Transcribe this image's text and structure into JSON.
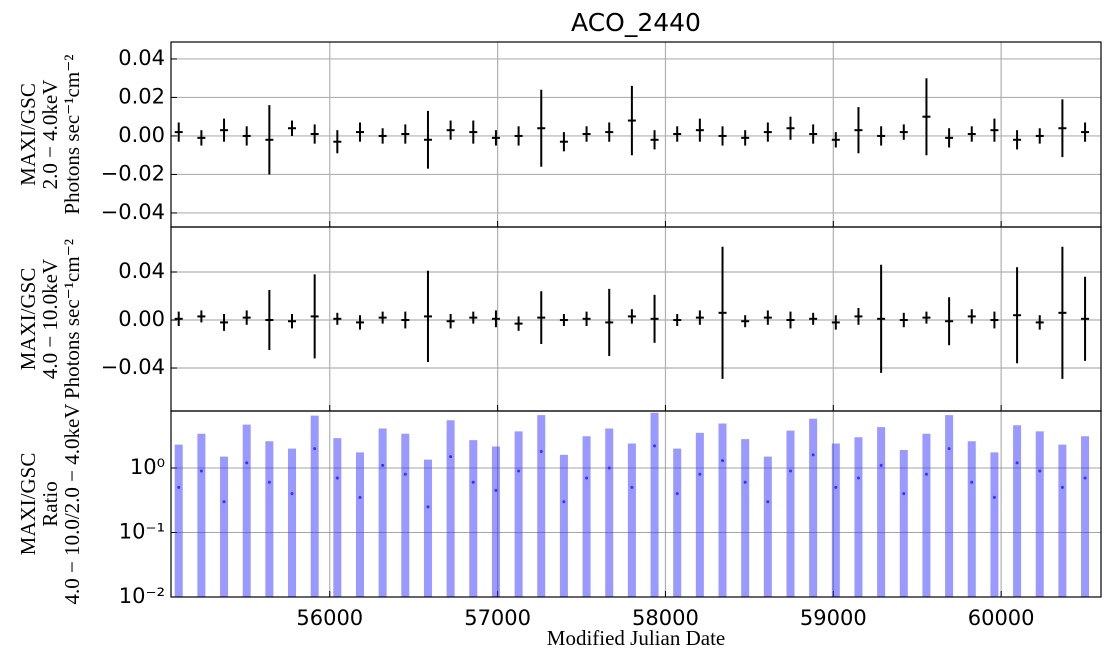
{
  "chart_data": [
    {
      "type": "errorbar",
      "title": "ACO_2440",
      "ylabel": [
        "MAXI/GSC",
        "2.0 − 4.0keV",
        "Photons sec⁻¹cm⁻²"
      ],
      "color": "#000000",
      "grid": true,
      "xlim": [
        55054,
        60595
      ],
      "xticks": [
        56000,
        57000,
        58000,
        59000,
        60000
      ],
      "ylim": [
        -0.0473,
        0.0488
      ],
      "yticks": [
        {
          "value": 0.04,
          "label": "0.04"
        },
        {
          "value": 0.02,
          "label": "0.02"
        },
        {
          "value": 0,
          "label": "0.00"
        },
        {
          "value": -0.02,
          "label": "−0.02"
        },
        {
          "value": -0.04,
          "label": "−0.04"
        }
      ],
      "x": [
        55100,
        55235,
        55370,
        55505,
        55640,
        55775,
        55910,
        56045,
        56180,
        56315,
        56450,
        56585,
        56720,
        56855,
        56990,
        57125,
        57260,
        57395,
        57530,
        57665,
        57800,
        57935,
        58070,
        58205,
        58340,
        58475,
        58610,
        58745,
        58880,
        59015,
        59150,
        59285,
        59420,
        59555,
        59690,
        59825,
        59960,
        60095,
        60230,
        60365,
        60500
      ],
      "values": [
        0.002,
        -0.001,
        0.003,
        0.0,
        -0.002,
        0.004,
        0.001,
        -0.003,
        0.002,
        0.0,
        0.001,
        -0.002,
        0.003,
        0.002,
        -0.001,
        0.0,
        0.004,
        -0.003,
        0.001,
        0.002,
        0.008,
        -0.002,
        0.001,
        0.003,
        0.0,
        -0.001,
        0.002,
        0.004,
        0.001,
        -0.002,
        0.003,
        0.0,
        0.002,
        0.01,
        -0.001,
        0.001,
        0.003,
        -0.002,
        0.0,
        0.004,
        0.002
      ],
      "errors": [
        0.005,
        0.004,
        0.006,
        0.005,
        0.018,
        0.004,
        0.005,
        0.006,
        0.005,
        0.004,
        0.005,
        0.015,
        0.005,
        0.006,
        0.004,
        0.005,
        0.02,
        0.005,
        0.004,
        0.005,
        0.018,
        0.005,
        0.004,
        0.006,
        0.005,
        0.004,
        0.005,
        0.006,
        0.005,
        0.004,
        0.012,
        0.005,
        0.004,
        0.02,
        0.005,
        0.004,
        0.006,
        0.005,
        0.004,
        0.015,
        0.005
      ]
    },
    {
      "type": "errorbar",
      "ylabel": [
        "MAXI/GSC",
        "4.0 − 10.0keV",
        "Photons sec⁻¹cm⁻²"
      ],
      "color": "#000000",
      "grid": true,
      "xlim": [
        55054,
        60595
      ],
      "xticks": [
        56000,
        57000,
        58000,
        59000,
        60000
      ],
      "ylim": [
        -0.0758,
        0.0775
      ],
      "yticks": [
        {
          "value": 0.04,
          "label": "0.04"
        },
        {
          "value": 0,
          "label": "0.00"
        },
        {
          "value": -0.04,
          "label": "−0.04"
        }
      ],
      "x": [
        55100,
        55235,
        55370,
        55505,
        55640,
        55775,
        55910,
        56045,
        56180,
        56315,
        56450,
        56585,
        56720,
        56855,
        56990,
        57125,
        57260,
        57395,
        57530,
        57665,
        57800,
        57935,
        58070,
        58205,
        58340,
        58475,
        58610,
        58745,
        58880,
        59015,
        59150,
        59285,
        59420,
        59555,
        59690,
        59825,
        59960,
        60095,
        60230,
        60365,
        60500
      ],
      "values": [
        0.001,
        0.003,
        -0.002,
        0.002,
        0.0,
        -0.001,
        0.003,
        0.001,
        -0.002,
        0.002,
        0.0,
        0.003,
        -0.001,
        0.002,
        0.001,
        -0.003,
        0.002,
        0.0,
        0.001,
        -0.002,
        0.003,
        0.001,
        0.0,
        0.002,
        0.006,
        -0.001,
        0.002,
        0.0,
        0.001,
        -0.002,
        0.003,
        0.001,
        0.0,
        0.002,
        -0.001,
        0.003,
        0.0,
        0.004,
        -0.002,
        0.006,
        0.001
      ],
      "errors": [
        0.006,
        0.005,
        0.007,
        0.006,
        0.025,
        0.006,
        0.035,
        0.005,
        0.006,
        0.005,
        0.007,
        0.038,
        0.006,
        0.005,
        0.007,
        0.006,
        0.022,
        0.005,
        0.006,
        0.028,
        0.006,
        0.02,
        0.005,
        0.006,
        0.055,
        0.005,
        0.006,
        0.007,
        0.005,
        0.006,
        0.007,
        0.045,
        0.006,
        0.005,
        0.02,
        0.006,
        0.007,
        0.04,
        0.006,
        0.055,
        0.035
      ]
    },
    {
      "type": "ratio",
      "ylabel": [
        "MAXI/GSC",
        "Ratio",
        "4.0 − 10.0/2.0 − 4.0keV"
      ],
      "xlabel": "Modified Julian Date",
      "color": "#3333ff",
      "grid": true,
      "yscale": "log",
      "xlim": [
        55054,
        60595
      ],
      "xticks": [
        56000,
        57000,
        58000,
        59000,
        60000
      ],
      "ylim": [
        0.01,
        7.65
      ],
      "yticks": [
        {
          "value": 1,
          "label": "10⁰"
        },
        {
          "value": 0.1,
          "label": "10⁻¹"
        },
        {
          "value": 0.01,
          "label": "10⁻²"
        }
      ],
      "x": [
        55100,
        55235,
        55370,
        55505,
        55640,
        55775,
        55910,
        56045,
        56180,
        56315,
        56450,
        56585,
        56720,
        56855,
        56990,
        57125,
        57260,
        57395,
        57530,
        57665,
        57800,
        57935,
        58070,
        58205,
        58340,
        58475,
        58610,
        58745,
        58880,
        59015,
        59150,
        59285,
        59420,
        59555,
        59690,
        59825,
        59960,
        60095,
        60230,
        60365,
        60500
      ],
      "values": [
        0.5,
        0.9,
        0.3,
        1.2,
        0.6,
        0.4,
        2.0,
        0.7,
        0.35,
        1.1,
        0.8,
        0.25,
        1.5,
        0.6,
        0.45,
        0.9,
        1.8,
        0.3,
        0.7,
        1.0,
        0.5,
        2.2,
        0.4,
        0.8,
        1.3,
        0.6,
        0.3,
        0.9,
        1.6,
        0.5,
        0.7,
        1.1,
        0.4,
        0.8,
        2.0,
        0.6,
        0.35,
        1.2,
        0.9,
        0.5,
        0.7
      ],
      "errors": [
        1.8,
        2.5,
        1.2,
        3.5,
        2.0,
        1.6,
        4.5,
        2.2,
        1.4,
        3.0,
        2.6,
        1.1,
        4.0,
        2.1,
        1.7,
        2.8,
        4.8,
        1.3,
        2.4,
        3.1,
        1.9,
        5.0,
        1.6,
        2.7,
        3.6,
        2.2,
        1.2,
        2.9,
        4.2,
        1.9,
        2.3,
        3.2,
        1.5,
        2.6,
        4.6,
        2.0,
        1.4,
        3.4,
        2.8,
        1.8,
        2.4
      ]
    }
  ]
}
